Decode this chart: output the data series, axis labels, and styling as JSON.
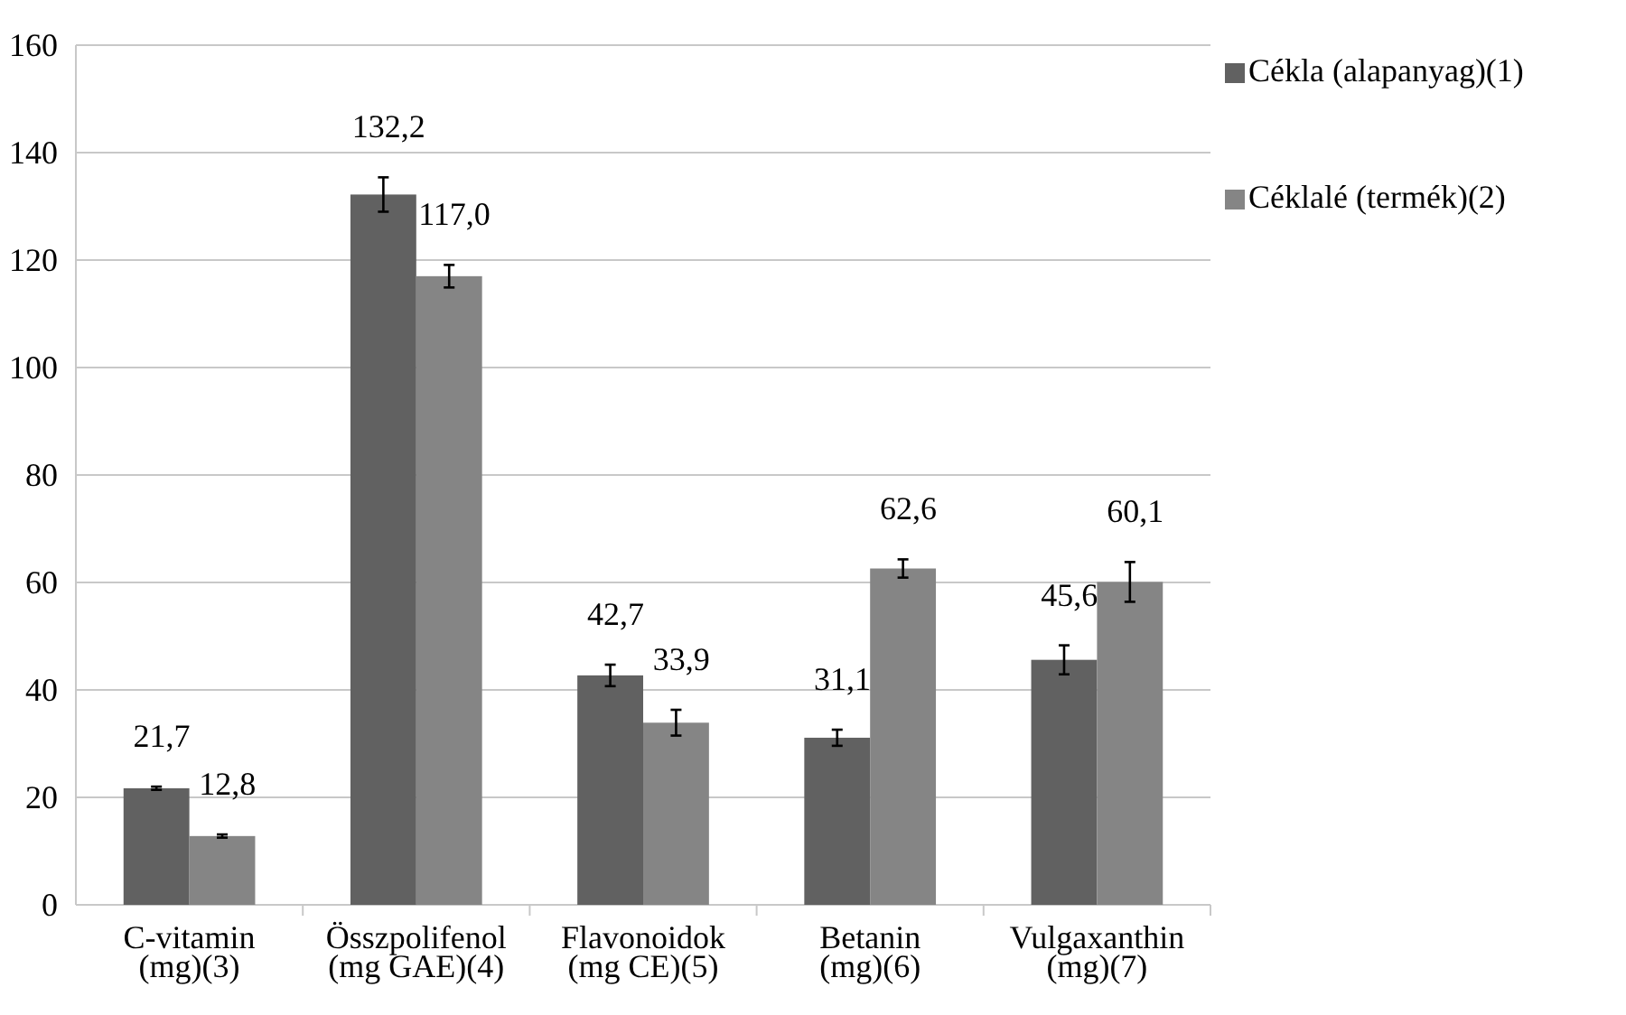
{
  "chart_data": {
    "type": "bar",
    "categories": [
      "C-vitamin\n(mg)(3)",
      "Összpolifenol\n(mg GAE)(4)",
      "Flavonoidok\n(mg CE)(5)",
      "Betanin\n(mg)(6)",
      "Vulgaxanthin\n(mg)(7)"
    ],
    "series": [
      {
        "name": "Cékla (alapanyag)(1)",
        "color": "#616161",
        "values": [
          21.7,
          132.2,
          42.7,
          31.1,
          45.6
        ],
        "errors": [
          0.3,
          3.2,
          2.0,
          1.5,
          2.7
        ],
        "value_labels": [
          "21,7",
          "132,2",
          "42,7",
          "31,1",
          "45,6"
        ]
      },
      {
        "name": "Céklalé (termék)(2)",
        "color": "#858585",
        "values": [
          12.8,
          117.0,
          33.9,
          62.6,
          60.1
        ],
        "errors": [
          0.3,
          2.1,
          2.4,
          1.7,
          3.7
        ],
        "value_labels": [
          "12,8",
          "117,0",
          "33,9",
          "62,6",
          "60,1"
        ]
      }
    ],
    "ylim": [
      0,
      160
    ],
    "yticks": [
      0,
      20,
      40,
      60,
      80,
      100,
      120,
      140,
      160
    ],
    "grid": "y",
    "legend": "top right"
  }
}
